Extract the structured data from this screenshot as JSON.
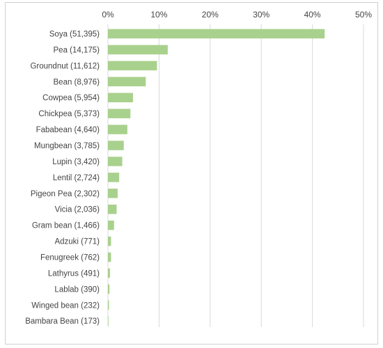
{
  "chart_data": {
    "type": "bar",
    "orientation": "horizontal",
    "categories": [
      "Soya (51,395)",
      "Pea (14,175)",
      "Groundnut (11,612)",
      "Bean (8,976)",
      "Cowpea (5,954)",
      "Chickpea (5,373)",
      "Fababean (4,640)",
      "Mungbean (3,785)",
      "Lupin (3,420)",
      "Lentil (2,724)",
      "Pigeon Pea (2,302)",
      "Vicia (2,036)",
      "Gram bean (1,466)",
      "Adzuki (771)",
      "Fenugreek (762)",
      "Lathyrus (491)",
      "Lablab (390)",
      "Winged bean (232)",
      "Bambara Bean (173)"
    ],
    "values": [
      42.4,
      11.7,
      9.6,
      7.4,
      4.9,
      4.4,
      3.8,
      3.1,
      2.8,
      2.2,
      1.9,
      1.7,
      1.2,
      0.6,
      0.6,
      0.4,
      0.3,
      0.2,
      0.1
    ],
    "xlim": [
      0,
      50
    ],
    "xticks": [
      "0%",
      "10%",
      "20%",
      "30%",
      "40%",
      "50%"
    ],
    "xtick_values": [
      0,
      10,
      20,
      30,
      40,
      50
    ],
    "axis_position": "top",
    "grid": "vertical",
    "bar_color": "#a9d18e",
    "grid_color": "#d9d9d9",
    "title": "",
    "xlabel": "",
    "ylabel": ""
  }
}
